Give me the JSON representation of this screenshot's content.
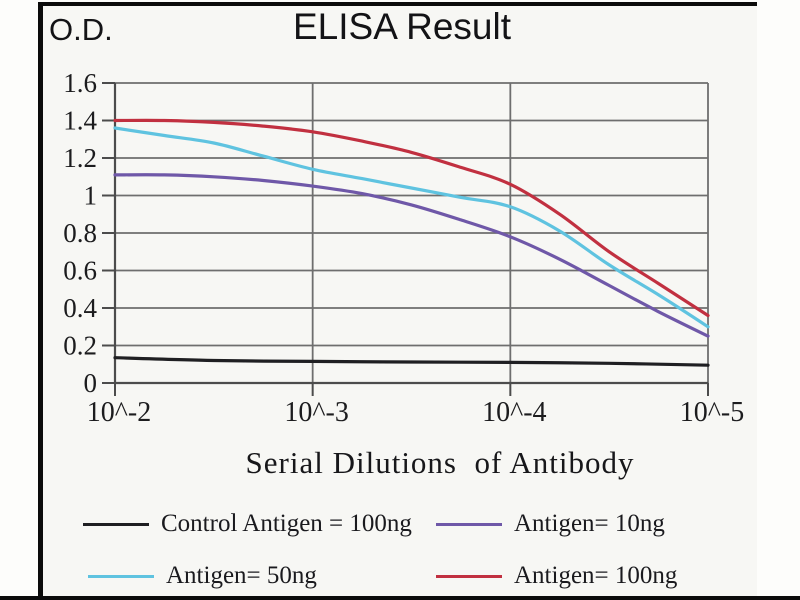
{
  "od_axis_label": "O.D.",
  "title": "ELISA Result",
  "x_axis_title": "Serial Dilutions  of Antibody",
  "colors": {
    "frame": "#0b0b0b",
    "grid": "#6e6e6e",
    "axis": "#4c4c4c",
    "text": "#1c1c1e",
    "control": "#1f1f22",
    "antigen10": "#6f58a8",
    "antigen50": "#5fc3e0",
    "antigen100": "#c13040"
  },
  "legend": {
    "items": [
      {
        "label": "Control Antigen = 100ng",
        "color": "#1f1f22"
      },
      {
        "label": "Antigen= 10ng",
        "color": "#6f58a8"
      },
      {
        "label": "Antigen= 50ng",
        "color": "#5fc3e0"
      },
      {
        "label": "Antigen= 100ng",
        "color": "#c13040"
      }
    ]
  },
  "chart_data": {
    "type": "line",
    "title": "ELISA Result",
    "xlabel": "Serial Dilutions  of Antibody",
    "ylabel": "O.D.",
    "x_scale": "log10 exponent, -2 to -5 left-to-right",
    "xlim": [
      -2,
      -5
    ],
    "ylim": [
      0,
      1.6
    ],
    "grid": true,
    "legend_position": "bottom",
    "y_ticks": [
      "1.6",
      "1.4",
      "1.2",
      "1",
      "0.8",
      "0.6",
      "0.4",
      "0.2",
      "0"
    ],
    "x_ticks": [
      {
        "label": "10^-2",
        "value": -2
      },
      {
        "label": "10^-3",
        "value": -3
      },
      {
        "label": "10^-4",
        "value": -4
      },
      {
        "label": "10^-5",
        "value": -5
      }
    ],
    "series": [
      {
        "name": "Control Antigen = 100ng",
        "color": "#1f1f22",
        "points": [
          [
            -2,
            0.135
          ],
          [
            -2.5,
            0.12
          ],
          [
            -3,
            0.115
          ],
          [
            -3.5,
            0.112
          ],
          [
            -4,
            0.11
          ],
          [
            -4.5,
            0.105
          ],
          [
            -5,
            0.095
          ]
        ]
      },
      {
        "name": "Antigen= 10ng",
        "color": "#6f58a8",
        "points": [
          [
            -2,
            1.11
          ],
          [
            -2.25,
            1.11
          ],
          [
            -2.5,
            1.1
          ],
          [
            -2.75,
            1.08
          ],
          [
            -3,
            1.05
          ],
          [
            -3.25,
            1.01
          ],
          [
            -3.5,
            0.95
          ],
          [
            -3.75,
            0.87
          ],
          [
            -4,
            0.78
          ],
          [
            -4.25,
            0.66
          ],
          [
            -4.5,
            0.52
          ],
          [
            -4.75,
            0.38
          ],
          [
            -5,
            0.25
          ]
        ]
      },
      {
        "name": "Antigen= 50ng",
        "color": "#5fc3e0",
        "points": [
          [
            -2,
            1.36
          ],
          [
            -2.25,
            1.32
          ],
          [
            -2.5,
            1.28
          ],
          [
            -2.75,
            1.21
          ],
          [
            -3,
            1.14
          ],
          [
            -3.25,
            1.09
          ],
          [
            -3.5,
            1.04
          ],
          [
            -3.75,
            0.99
          ],
          [
            -4,
            0.94
          ],
          [
            -4.25,
            0.81
          ],
          [
            -4.5,
            0.63
          ],
          [
            -4.75,
            0.47
          ],
          [
            -5,
            0.3
          ]
        ]
      },
      {
        "name": "Antigen= 100ng",
        "color": "#c13040",
        "points": [
          [
            -2,
            1.4
          ],
          [
            -2.25,
            1.4
          ],
          [
            -2.5,
            1.39
          ],
          [
            -2.75,
            1.37
          ],
          [
            -3,
            1.34
          ],
          [
            -3.25,
            1.29
          ],
          [
            -3.5,
            1.23
          ],
          [
            -3.75,
            1.15
          ],
          [
            -4,
            1.06
          ],
          [
            -4.25,
            0.9
          ],
          [
            -4.5,
            0.7
          ],
          [
            -4.75,
            0.53
          ],
          [
            -5,
            0.36
          ]
        ]
      }
    ]
  }
}
